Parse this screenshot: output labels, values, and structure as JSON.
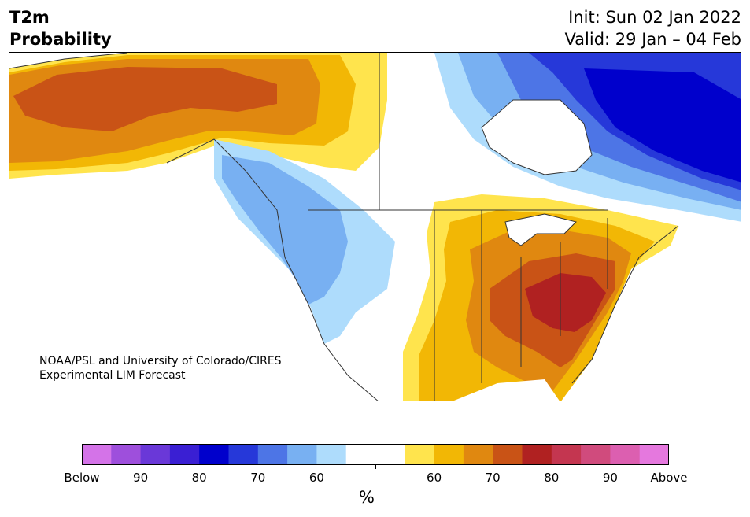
{
  "title": {
    "line1": "T2m",
    "line2": "Probability"
  },
  "init": "Init: Sun 02 Jan 2022",
  "valid": "Valid: 29 Jan – 04 Feb",
  "credit": {
    "line1": "NOAA/PSL and University of Colorado/CIRES",
    "line2": "Experimental LIM Forecast"
  },
  "colorbar": {
    "unit_label": "%",
    "colors": [
      "#d473e8",
      "#9e4fdc",
      "#6a38d8",
      "#3a1fd3",
      "#0000cc",
      "#2638d9",
      "#4d75e6",
      "#78b0f2",
      "#aedcfc",
      "#ffffff",
      "#ffffff",
      "#ffe44d",
      "#f2b705",
      "#e08810",
      "#c95316",
      "#b02121",
      "#c43650",
      "#d04b7d",
      "#dc5fb0",
      "#e578de"
    ],
    "tick_labels": [
      "Below",
      "90",
      "80",
      "70",
      "60",
      "",
      "60",
      "70",
      "80",
      "90",
      "Above"
    ]
  },
  "map_colors": {
    "above_55": "#ffe44d",
    "above_60": "#f2b705",
    "above_65": "#e08810",
    "above_70": "#c95316",
    "above_75": "#b02121",
    "below_55": "#aedcfc",
    "below_60": "#78b0f2",
    "below_65": "#4d75e6",
    "below_70": "#2638d9",
    "below_75": "#0000cc",
    "boundaries": "#333333"
  }
}
